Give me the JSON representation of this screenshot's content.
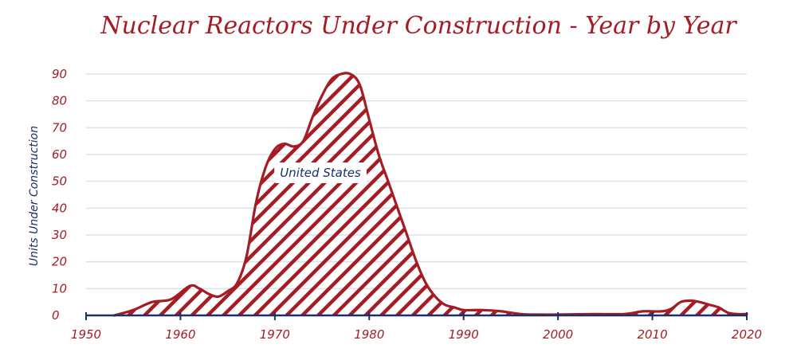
{
  "chart_data": {
    "type": "area",
    "title": "Nuclear Reactors Under Construction - Year by Year",
    "xlabel": "",
    "ylabel": "Units Under Construction",
    "xlim": [
      1950,
      2020
    ],
    "ylim": [
      0,
      90
    ],
    "x_ticks": [
      "1950",
      "1960",
      "1970",
      "1980",
      "1990",
      "2000",
      "2010",
      "2020"
    ],
    "y_ticks": [
      "0",
      "10",
      "20",
      "30",
      "40",
      "50",
      "60",
      "70",
      "80",
      "90"
    ],
    "grid": true,
    "series": [
      {
        "name": "United States",
        "x": [
          1953,
          1955,
          1957,
          1959,
          1961,
          1962,
          1963,
          1964,
          1965,
          1966,
          1967,
          1968,
          1969,
          1970,
          1971,
          1972,
          1973,
          1974,
          1975,
          1976,
          1977,
          1978,
          1979,
          1980,
          1981,
          1982,
          1983,
          1984,
          1985,
          1986,
          1987,
          1988,
          1989,
          1990,
          1992,
          1994,
          1996,
          1998,
          2000,
          2004,
          2007,
          2009,
          2011,
          2012,
          2013,
          2014,
          2015,
          2016,
          2017,
          2018,
          2019,
          2020
        ],
        "values": [
          0,
          2,
          5,
          6,
          11,
          10,
          8,
          7,
          9,
          12,
          22,
          42,
          55,
          62,
          64,
          63,
          65,
          74,
          82,
          88,
          90,
          90,
          86,
          73,
          60,
          50,
          40,
          30,
          20,
          12,
          7,
          4,
          3,
          2,
          2,
          1.5,
          0.5,
          0.3,
          0.3,
          0.5,
          0.5,
          1.5,
          1.5,
          2.5,
          5,
          5.5,
          5,
          4,
          3,
          1,
          0.5,
          0.5
        ]
      }
    ],
    "colors": {
      "series": "#a51c24",
      "label": "#1a2f6b",
      "axis": "#1a2f6b",
      "grid": "#dde0ea"
    }
  }
}
